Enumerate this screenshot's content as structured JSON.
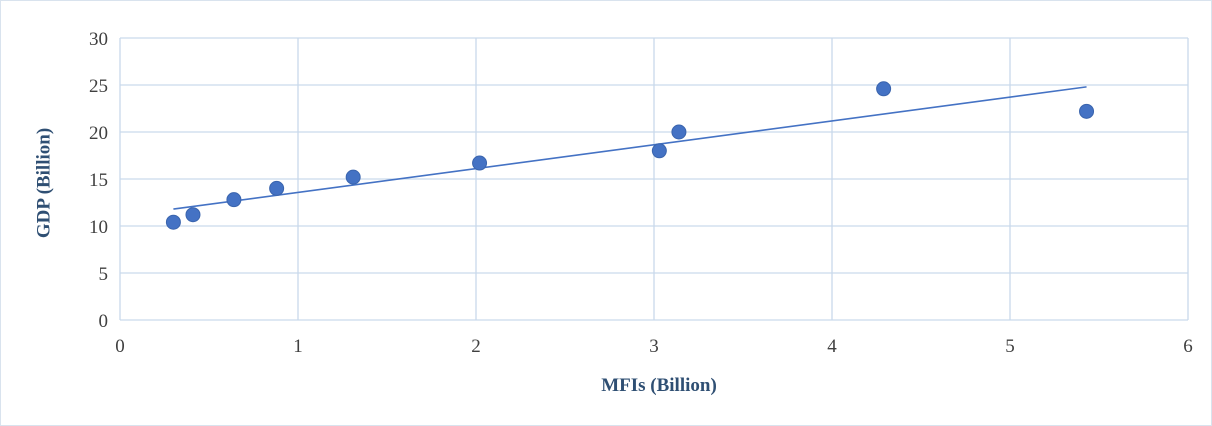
{
  "chart_data": {
    "type": "scatter",
    "title": "",
    "xlabel": "MFIs (Billion)",
    "ylabel": "GDP (Billion)",
    "xlim": [
      0,
      6
    ],
    "ylim": [
      0,
      30
    ],
    "x_ticks": [
      "0",
      "1",
      "2",
      "3",
      "4",
      "5",
      "6"
    ],
    "y_ticks": [
      "0",
      "5",
      "10",
      "15",
      "20",
      "25",
      "30"
    ],
    "grid": true,
    "legend": "none",
    "point_color": "#4472c4",
    "trendline": {
      "type": "linear",
      "x": [
        0.3,
        5.43
      ],
      "y": [
        11.8,
        24.8
      ],
      "color": "#4472c4"
    },
    "series": [
      {
        "x": [
          0.3,
          0.41,
          0.64,
          0.88,
          1.31,
          2.02,
          3.03,
          3.14,
          4.29,
          5.43
        ],
        "y": [
          10.4,
          11.2,
          12.8,
          14.0,
          15.2,
          16.7,
          18.0,
          20.0,
          24.6,
          22.2
        ]
      }
    ]
  }
}
